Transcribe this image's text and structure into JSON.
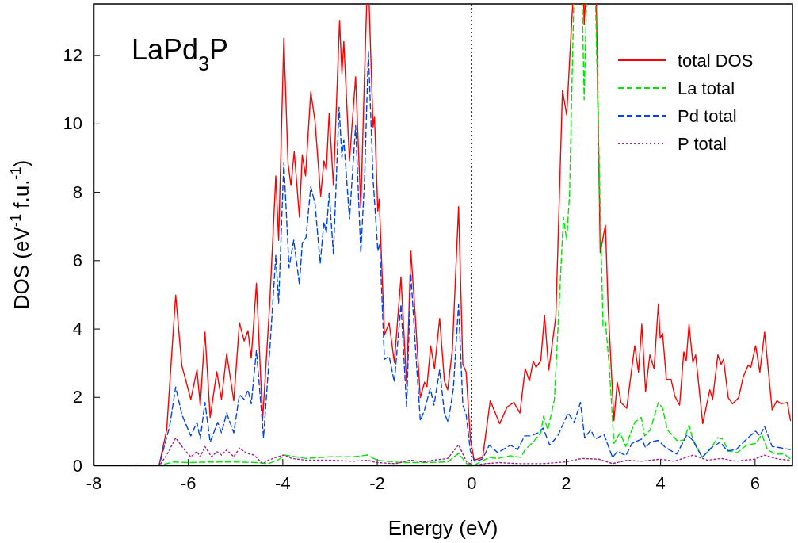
{
  "chart_data": {
    "type": "line",
    "title": "LaPd$_{3}$P",
    "xlabel": "Energy (eV)",
    "ylabel": "DOS (eV$^{-1}$ f.u.$^{-1}$)",
    "xlim": [
      -8,
      6.8
    ],
    "ylim": [
      0,
      13.5
    ],
    "xticks": [
      -8,
      -6,
      -4,
      -2,
      0,
      2,
      4,
      6
    ],
    "yticks": [
      0,
      2,
      4,
      6,
      8,
      10,
      12
    ],
    "grid": false,
    "legend": "top right",
    "marker": "none",
    "ref_lines": [
      {
        "axis": "x",
        "value": 0,
        "color": "#000000",
        "line_style": "dotted"
      }
    ],
    "series": [
      {
        "name": "total DOS",
        "color": "#ff0000",
        "line_style": "solid",
        "x": [
          -7.23,
          -6.61,
          -6.45,
          -6.36,
          -6.26,
          -6.13,
          -5.94,
          -5.81,
          -5.74,
          -5.64,
          -5.53,
          -5.39,
          -5.29,
          -5.18,
          -5.03,
          -4.91,
          -4.81,
          -4.73,
          -4.66,
          -4.55,
          -4.42,
          -4.27,
          -4.14,
          -4.08,
          -3.97,
          -3.88,
          -3.82,
          -3.75,
          -3.64,
          -3.58,
          -3.51,
          -3.4,
          -3.31,
          -3.19,
          -3.12,
          -3.07,
          -3.01,
          -2.92,
          -2.79,
          -2.74,
          -2.7,
          -2.58,
          -2.45,
          -2.34,
          -2.26,
          -2.2,
          -2.18,
          -2.08,
          -2.05,
          -1.98,
          -1.95,
          -1.84,
          -1.74,
          -1.63,
          -1.49,
          -1.37,
          -1.28,
          -1.19,
          -1.08,
          -0.99,
          -0.94,
          -0.86,
          -0.78,
          -0.67,
          -0.57,
          -0.5,
          -0.4,
          -0.27,
          -0.18,
          -0.11,
          -0.02,
          0.06,
          0.24,
          0.4,
          0.6,
          0.76,
          0.9,
          1.03,
          1.14,
          1.23,
          1.31,
          1.37,
          1.47,
          1.55,
          1.64,
          1.79,
          1.93,
          2.02,
          2.13,
          2.18,
          2.37,
          2.39,
          2.44,
          2.64,
          2.73,
          2.84,
          2.9,
          3.02,
          3.09,
          3.17,
          3.29,
          3.46,
          3.54,
          3.61,
          3.69,
          3.78,
          3.87,
          3.96,
          4.0,
          4.05,
          4.13,
          4.23,
          4.31,
          4.41,
          4.5,
          4.55,
          4.61,
          4.69,
          4.75,
          4.9,
          5.05,
          5.11,
          5.22,
          5.29,
          5.34,
          5.44,
          5.53,
          5.66,
          5.76,
          5.86,
          5.92,
          6.02,
          6.11,
          6.21,
          6.37,
          6.47,
          6.56,
          6.69,
          6.76
        ],
        "values": [
          0,
          0,
          1.04,
          2.92,
          4.98,
          2.92,
          1.93,
          2.79,
          1.76,
          3.9,
          1.4,
          2.74,
          1.93,
          3.27,
          1.89,
          4.17,
          3.64,
          3.94,
          3.14,
          5.33,
          1.31,
          4.7,
          8.47,
          6.58,
          12.5,
          8.82,
          8.19,
          9.18,
          7.26,
          9.09,
          8.47,
          10.93,
          10.07,
          7.88,
          8.91,
          8.65,
          10.3,
          8.19,
          13.02,
          11.46,
          12.4,
          8.91,
          11.37,
          7.52,
          11.5,
          null,
          null,
          9.9,
          10.2,
          7.44,
          7.79,
          3.81,
          4.17,
          3.01,
          5.51,
          2.38,
          6.27,
          4.44,
          1.98,
          2.43,
          2.3,
          3.5,
          2.83,
          4.3,
          2.47,
          2.21,
          3.41,
          7.57,
          2.96,
          2.73,
          0.77,
          0.15,
          0.23,
          1.89,
          1.22,
          1.71,
          1.84,
          1.53,
          2.83,
          2.47,
          3.05,
          2.87,
          3.05,
          4.39,
          2.79,
          4.35,
          10.97,
          10.25,
          13.1,
          null,
          null,
          12.9,
          null,
          null,
          6.22,
          7.03,
          4.53,
          1.31,
          2.43,
          1.84,
          1.67,
          3.5,
          2.73,
          4.13,
          2.16,
          3.23,
          2.83,
          4.71,
          3.72,
          3.86,
          2.51,
          2.51,
          2.02,
          1.76,
          3.32,
          3.05,
          4.13,
          3.01,
          3.23,
          1.22,
          2.21,
          1.93,
          3.23,
          2.96,
          3.1,
          1.98,
          1.8,
          1.98,
          2.6,
          2.92,
          2.87,
          3.5,
          2.73,
          3.9,
          1.62,
          1.89,
          1.8,
          1.84,
          1.31
        ]
      },
      {
        "name": "La total",
        "color": "#00e600",
        "line_style": "dashed",
        "x": [
          -7.23,
          -6.6,
          -6.3,
          -6,
          -5.5,
          -5,
          -4.5,
          -4.3,
          -4.1,
          -3.95,
          -3.5,
          -3,
          -2.5,
          -2.2,
          -2,
          -1.5,
          -1,
          -0.5,
          -0.27,
          -0.1,
          0.05,
          0.38,
          0.56,
          0.83,
          1.05,
          1.14,
          1.31,
          1.47,
          1.53,
          1.62,
          1.76,
          1.86,
          1.95,
          2.02,
          2.08,
          2.18,
          2.34,
          2.39,
          2.45,
          2.62,
          2.73,
          2.79,
          2.84,
          2.92,
          3.02,
          3.15,
          3.27,
          3.46,
          3.6,
          3.67,
          3.79,
          3.96,
          4.05,
          4.15,
          4.35,
          4.5,
          4.61,
          4.69,
          4.89,
          5.05,
          5.22,
          5.32,
          5.44,
          5.63,
          5.83,
          6.02,
          6.15,
          6.27,
          6.44,
          6.63,
          6.75
        ],
        "values": [
          0,
          0,
          0.1,
          0.08,
          0.1,
          0.1,
          0.08,
          0.05,
          0.15,
          0.3,
          0.2,
          0.25,
          0.25,
          0.3,
          0.15,
          0.08,
          0.08,
          0.1,
          0.35,
          0.05,
          0,
          0.23,
          0.2,
          0.28,
          0.23,
          0.46,
          0.68,
          0.95,
          1.44,
          1.04,
          1.93,
          4.71,
          7.26,
          6.59,
          7.93,
          null,
          null,
          10.7,
          null,
          null,
          7.39,
          4.08,
          4.2,
          2.92,
          0.64,
          0.95,
          0.55,
          1.26,
          1.4,
          0.86,
          1.04,
          1.84,
          1.67,
          1.04,
          0.73,
          0.73,
          1.17,
          0.77,
          0.23,
          0.46,
          0.81,
          0.77,
          0.42,
          0.37,
          0.59,
          0.64,
          0.9,
          0.46,
          0.33,
          0.33,
          0.19
        ]
      },
      {
        "name": "Pd total",
        "color": "#0044ee",
        "line_style": "dashed",
        "x": [
          -7.23,
          -6.61,
          -6.39,
          -6.26,
          -6.13,
          -5.94,
          -5.81,
          -5.74,
          -5.64,
          -5.53,
          -5.37,
          -5.29,
          -5.18,
          -5.03,
          -4.91,
          -4.81,
          -4.73,
          -4.66,
          -4.55,
          -4.4,
          -4.26,
          -4.14,
          -4.08,
          -3.97,
          -3.86,
          -3.76,
          -3.64,
          -3.58,
          -3.5,
          -3.4,
          -3.31,
          -3.2,
          -3.12,
          -3.07,
          -3.01,
          -2.92,
          -2.8,
          -2.74,
          -2.7,
          -2.58,
          -2.45,
          -2.34,
          -2.26,
          -2.18,
          -2.08,
          -1.98,
          -1.94,
          -1.84,
          -1.74,
          -1.63,
          -1.49,
          -1.37,
          -1.28,
          -1.18,
          -1.08,
          -0.99,
          -0.87,
          -0.79,
          -0.67,
          -0.57,
          -0.49,
          -0.38,
          -0.27,
          -0.18,
          -0.11,
          -0.02,
          0.08,
          0.24,
          0.38,
          0.56,
          0.83,
          0.98,
          1.13,
          1.27,
          1.41,
          1.52,
          1.66,
          1.83,
          2.05,
          2.18,
          2.31,
          2.4,
          2.53,
          2.62,
          2.81,
          2.99,
          3.1,
          3.27,
          3.4,
          3.61,
          3.69,
          3.79,
          3.96,
          4.12,
          4.35,
          4.57,
          4.69,
          4.89,
          5.08,
          5.27,
          5.42,
          5.61,
          5.83,
          6.02,
          6.11,
          6.21,
          6.37,
          6.56,
          6.75
        ],
        "values": [
          0,
          0,
          1.13,
          2.29,
          1.49,
          0.86,
          1.26,
          0.77,
          1.84,
          0.68,
          1.26,
          0.95,
          1.53,
          0.95,
          2.07,
          1.93,
          2.21,
          1.8,
          3.37,
          0.81,
          3.54,
          6.14,
          4.75,
          8.87,
          5.78,
          6.59,
          5.29,
          6.5,
          6.67,
          8.15,
          7.66,
          5.91,
          7.12,
          6.81,
          7.97,
          6.18,
          10.48,
          9.0,
          9.53,
          7.21,
          9.94,
          6.22,
          8.37,
          12.13,
          8.37,
          6.27,
          6.5,
          3.1,
          3.19,
          2.43,
          4.71,
          1.71,
          5.6,
          3.37,
          1.31,
          1.62,
          2.25,
          1.76,
          2.79,
          1.53,
          1.26,
          2.25,
          4.71,
          1.76,
          1.49,
          0.42,
          0.1,
          0.19,
          0.59,
          0.37,
          0.59,
          0.46,
          0.86,
          0.86,
          0.95,
          1.09,
          0.59,
          0.86,
          1.53,
          1.26,
          1.84,
          0.81,
          1.04,
          0.77,
          0.9,
          0.23,
          0.42,
          0.28,
          0.64,
          0.77,
          0.51,
          0.68,
          0.73,
          0.51,
          0.33,
          0.9,
          0.73,
          0.23,
          0.51,
          0.68,
          0.42,
          0.46,
          0.77,
          1.0,
          0.86,
          1.13,
          0.55,
          0.51,
          0.46
        ]
      },
      {
        "name": "P total",
        "color": "#a0208f",
        "line_style": "dotted",
        "x": [
          -7.23,
          -6.6,
          -6.45,
          -6.26,
          -6.1,
          -5.94,
          -5.81,
          -5.74,
          -5.64,
          -5.5,
          -5.39,
          -5.29,
          -5.18,
          -5.03,
          -4.91,
          -4.75,
          -4.6,
          -4.42,
          -4.3,
          -4.1,
          -3.97,
          -3.8,
          -3.5,
          -3,
          -2.5,
          -2.2,
          -2,
          -1.6,
          -1.3,
          -1,
          -0.8,
          -0.5,
          -0.27,
          -0.1,
          0.05,
          0.3,
          0.6,
          1,
          1.5,
          2,
          2.35,
          2.7,
          2.99,
          3.3,
          3.6,
          4,
          4.3,
          4.7,
          5,
          5.3,
          5.6,
          6,
          6.2,
          6.5,
          6.75
        ],
        "values": [
          0,
          0,
          0.3,
          0.8,
          0.5,
          0.25,
          0.4,
          0.25,
          0.55,
          0.25,
          0.4,
          0.3,
          0.45,
          0.25,
          0.5,
          0.35,
          0.3,
          0.05,
          0.15,
          0.25,
          0.3,
          0.2,
          0.15,
          0.15,
          0.12,
          0.15,
          0.08,
          0.05,
          0.15,
          0.1,
          0.15,
          0.2,
          0.6,
          0.1,
          0,
          0.05,
          0.08,
          0.05,
          0.05,
          0.1,
          0.2,
          0.18,
          0.05,
          0.15,
          0.12,
          0.18,
          0.12,
          0.3,
          0.15,
          0.2,
          0.12,
          0.18,
          0.3,
          0.18,
          0.15
        ]
      }
    ]
  }
}
